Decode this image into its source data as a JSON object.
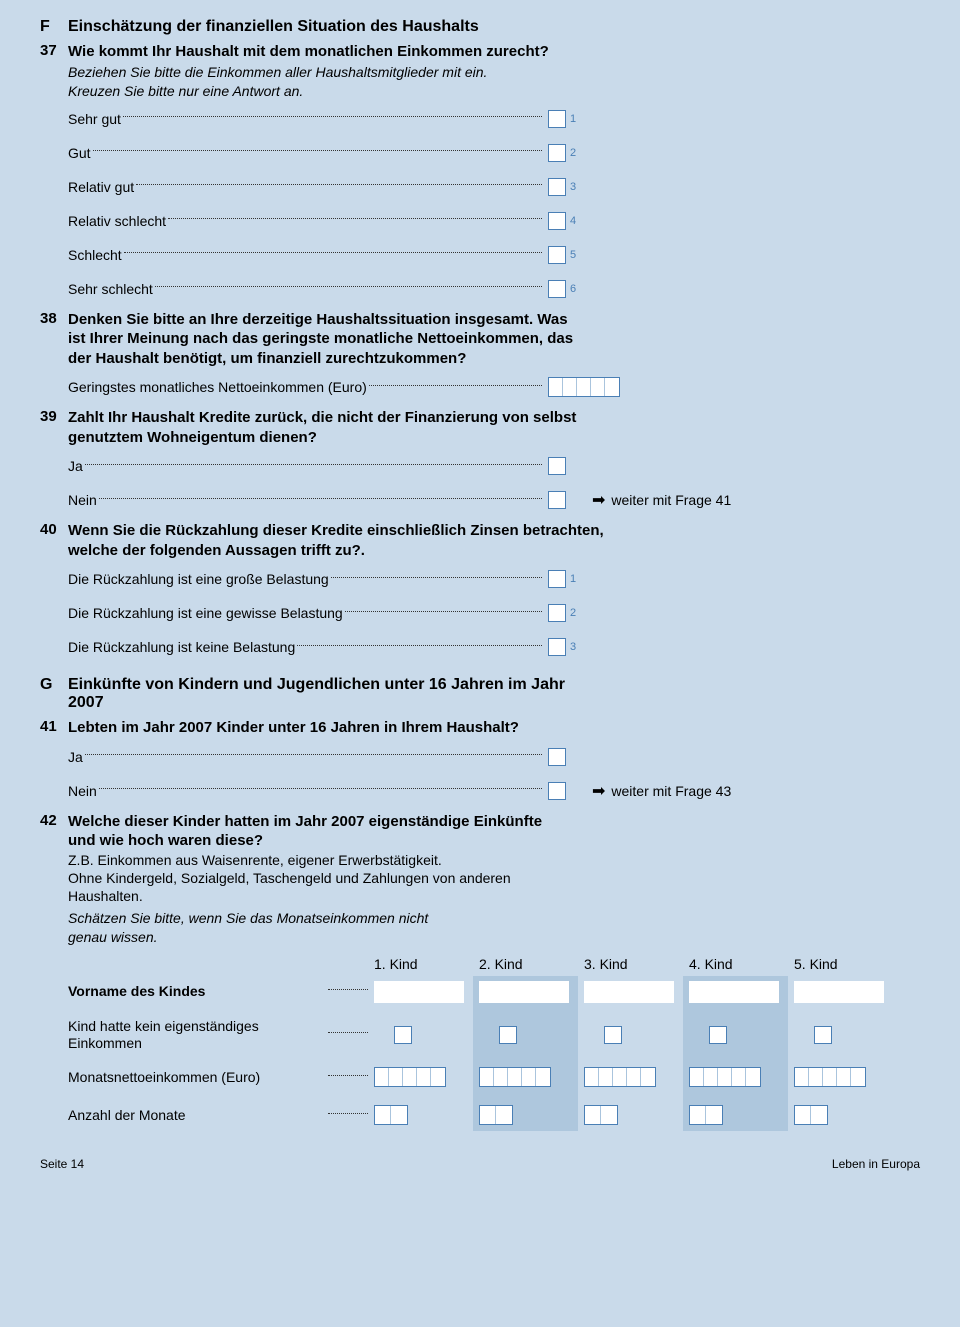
{
  "colors": {
    "page_bg": "#c9daea",
    "box_border": "#4a7fb5",
    "box_bg": "#ffffff",
    "alt_col_bg": "#aec7dd",
    "dot_color": "#333333",
    "opt_num_color": "#4a7fb5"
  },
  "sectionF": {
    "letter": "F",
    "title": "Einschätzung der finanziellen Situation des Haushalts"
  },
  "q37": {
    "num": "37",
    "text": "Wie kommt Ihr Haushalt mit dem monatlichen Einkommen zurecht?",
    "note1": "Beziehen Sie bitte die Einkommen aller Haushaltsmitglieder mit ein.",
    "note2": "Kreuzen Sie bitte nur eine Antwort an.",
    "options": [
      {
        "label": "Sehr gut",
        "n": "1"
      },
      {
        "label": "Gut",
        "n": "2"
      },
      {
        "label": "Relativ gut",
        "n": "3"
      },
      {
        "label": "Relativ schlecht",
        "n": "4"
      },
      {
        "label": "Schlecht",
        "n": "5"
      },
      {
        "label": "Sehr schlecht",
        "n": "6"
      }
    ]
  },
  "q38": {
    "num": "38",
    "text": "Denken Sie bitte an Ihre derzeitige Haushaltssituation insgesamt. Was ist Ihrer Meinung nach das geringste monatliche Netto­einkommen, das der Haushalt benötigt, um finanziell zurechtzukommen?",
    "field_label": "Geringstes monatliches Nettoeinkommen (Euro)",
    "digits": 5
  },
  "q39": {
    "num": "39",
    "text": "Zahlt Ihr Haushalt Kredite zurück, die nicht der Finanzierung von selbst genutztem Wohneigentum dienen?",
    "opt_yes": "Ja",
    "opt_no": "Nein",
    "skip": "weiter mit Frage 41"
  },
  "q40": {
    "num": "40",
    "text": "Wenn Sie die Rückzahlung dieser Kredite einschließlich Zinsen betrachten, welche der folgenden Aussagen trifft zu?.",
    "options": [
      {
        "label": "Die Rückzahlung ist eine große Belastung",
        "n": "1"
      },
      {
        "label": "Die Rückzahlung ist eine gewisse Belastung",
        "n": "2"
      },
      {
        "label": "Die Rückzahlung ist keine Belastung",
        "n": "3"
      }
    ]
  },
  "sectionG": {
    "letter": "G",
    "title": "Einkünfte von Kindern und Jugendlichen unter 16 Jahren im Jahr 2007"
  },
  "q41": {
    "num": "41",
    "text": "Lebten im Jahr 2007 Kinder unter 16 Jahren in Ihrem Haushalt?",
    "opt_yes": "Ja",
    "opt_no": "Nein",
    "skip": "weiter mit Frage 43"
  },
  "q42": {
    "num": "42",
    "text": "Welche dieser Kinder hatten im Jahr 2007 eigenständige Einkünfte und wie hoch waren diese?",
    "sub1": "Z.B. Einkommen aus Waisenrente, eigener Erwerbstätigkeit.",
    "sub2": "Ohne Kindergeld, Sozialgeld, Taschengeld und Zahlungen von anderen Haushalten.",
    "note": "Schätzen Sie bitte, wenn Sie das Monatseinkommen nicht genau wissen.",
    "cols": [
      "1. Kind",
      "2. Kind",
      "3. Kind",
      "4. Kind",
      "5. Kind"
    ],
    "rows": {
      "vorname": "Vorname des Kindes",
      "kein": "Kind hatte kein eigenständiges Einkommen",
      "netto": "Monatsnettoeinkommen (Euro)",
      "monate": "Anzahl der Monate"
    },
    "netto_digits": 5,
    "monate_digits": 2
  },
  "footer": {
    "left": "Seite 14",
    "right": "Leben in Europa"
  }
}
